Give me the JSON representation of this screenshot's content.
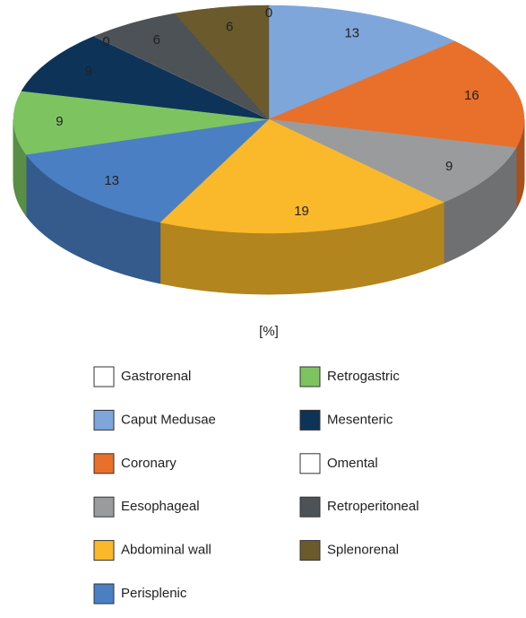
{
  "chart_data": {
    "type": "pie3d",
    "xlabel": "[%]",
    "categories": [
      "Gastrorenal",
      "Caput Medusae",
      "Coronary",
      "Eesophageal",
      "Abdominal wall",
      "Perisplenic",
      "Retrogastric",
      "Mesenteric",
      "Omental",
      "Retroperitoneal",
      "Splenorenal"
    ],
    "values": [
      0,
      13,
      16,
      9,
      19,
      13,
      9,
      9,
      0,
      6,
      6
    ],
    "colors": [
      "#ffffff",
      "#7ea6db",
      "#e8702a",
      "#9a9b9d",
      "#f9b92b",
      "#4a7fc4",
      "#7dc461",
      "#0e3358",
      "#ffffff",
      "#4d5256",
      "#6b5a2b"
    ],
    "legend": "bottom"
  }
}
